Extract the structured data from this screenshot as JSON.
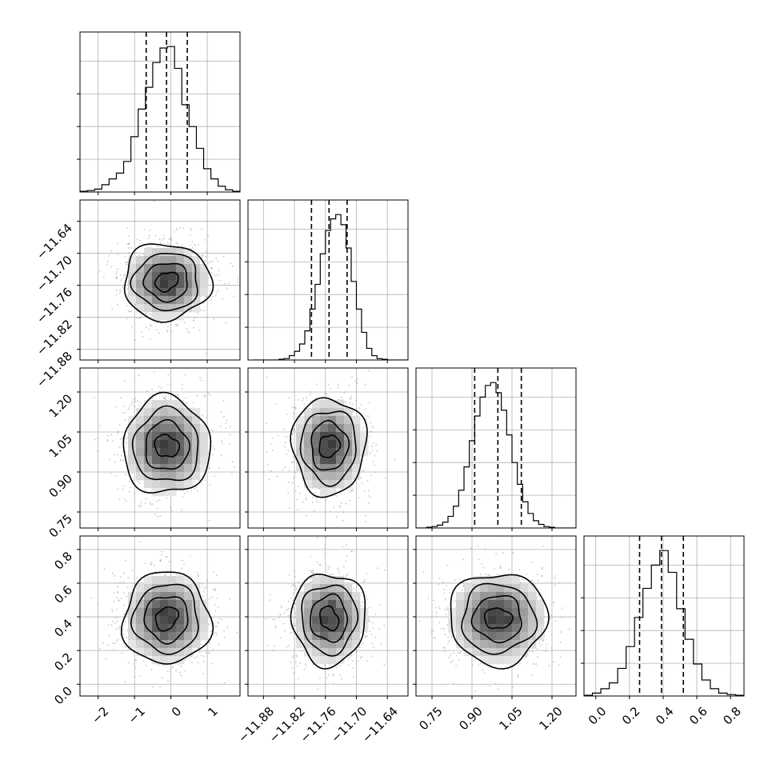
{
  "chart_data": {
    "type": "corner",
    "parameters": [
      {
        "histogram": {
          "bin_edges": [
            -2.5,
            -2.3,
            -2.1,
            -1.9,
            -1.7,
            -1.5,
            -1.3,
            -1.1,
            -0.9,
            -0.7,
            -0.5,
            -0.3,
            -0.1,
            0.1,
            0.3,
            0.5,
            0.7,
            0.9,
            1.1,
            1.3,
            1.5,
            1.7,
            1.9
          ],
          "counts": [
            0.005,
            0.01,
            0.02,
            0.05,
            0.09,
            0.13,
            0.21,
            0.38,
            0.57,
            0.72,
            0.89,
            0.99,
            1.0,
            0.85,
            0.6,
            0.45,
            0.3,
            0.16,
            0.09,
            0.04,
            0.015,
            0.005
          ],
          "ymax": 1.1,
          "quantiles": [
            -0.68,
            -0.12,
            0.45
          ],
          "xlim": [
            -2.5,
            1.9
          ]
        },
        "ticks": [
          -2,
          -1,
          0,
          1
        ],
        "tick_labels": [
          "−2",
          "−1",
          "0",
          "1"
        ],
        "median": -0.12,
        "sigma": 0.57
      },
      {
        "histogram": {
          "bin_edges": [
            -11.9,
            -11.89,
            -11.88,
            -11.87,
            -11.86,
            -11.85,
            -11.84,
            -11.83,
            -11.82,
            -11.81,
            -11.8,
            -11.79,
            -11.78,
            -11.77,
            -11.76,
            -11.75,
            -11.74,
            -11.73,
            -11.72,
            -11.71,
            -11.7,
            -11.69,
            -11.68,
            -11.67,
            -11.66,
            -11.65,
            -11.64,
            -11.63,
            -11.62,
            -11.61,
            -11.6
          ],
          "counts": [
            0,
            0,
            0,
            0,
            0,
            0.005,
            0.01,
            0.03,
            0.06,
            0.11,
            0.2,
            0.35,
            0.52,
            0.73,
            0.89,
            0.97,
            1.0,
            0.93,
            0.77,
            0.54,
            0.35,
            0.19,
            0.08,
            0.03,
            0.01,
            0.005,
            0,
            0,
            0,
            0
          ],
          "ymax": 1.1,
          "quantiles": [
            -11.787,
            -11.753,
            -11.718
          ],
          "xlim": [
            -11.91,
            -11.6
          ]
        },
        "ticks": [
          -11.88,
          -11.82,
          -11.76,
          -11.7,
          -11.64
        ],
        "tick_labels": [
          "−11.88",
          "−11.82",
          "−11.76",
          "−11.70",
          "−11.64"
        ],
        "median": -11.753,
        "sigma": 0.034
      },
      {
        "histogram": {
          "bin_edges": [
            0.69,
            0.71,
            0.73,
            0.75,
            0.77,
            0.79,
            0.81,
            0.83,
            0.85,
            0.87,
            0.89,
            0.91,
            0.93,
            0.95,
            0.97,
            0.99,
            1.01,
            1.03,
            1.05,
            1.07,
            1.09,
            1.11,
            1.13,
            1.15,
            1.17,
            1.19,
            1.21,
            1.23,
            1.25,
            1.27,
            1.29
          ],
          "counts": [
            0,
            0,
            0.005,
            0.01,
            0.02,
            0.04,
            0.08,
            0.15,
            0.26,
            0.42,
            0.6,
            0.77,
            0.9,
            0.98,
            1.0,
            0.93,
            0.81,
            0.64,
            0.45,
            0.3,
            0.18,
            0.1,
            0.05,
            0.025,
            0.01,
            0.005,
            0,
            0,
            0,
            0
          ],
          "ymax": 1.1,
          "quantiles": [
            0.91,
            0.997,
            1.085
          ],
          "xlim": [
            0.69,
            1.29
          ]
        },
        "ticks": [
          0.75,
          0.9,
          1.05,
          1.2
        ],
        "tick_labels": [
          "0.75",
          "0.90",
          "1.05",
          "1.20"
        ],
        "median": 0.997,
        "sigma": 0.087
      },
      {
        "histogram": {
          "bin_edges": [
            -0.07,
            -0.02,
            0.03,
            0.08,
            0.13,
            0.18,
            0.23,
            0.28,
            0.33,
            0.38,
            0.43,
            0.48,
            0.53,
            0.58,
            0.63,
            0.68,
            0.73,
            0.78,
            0.83,
            0.88
          ],
          "counts": [
            0.005,
            0.02,
            0.05,
            0.09,
            0.19,
            0.34,
            0.54,
            0.74,
            0.9,
            1.0,
            0.85,
            0.6,
            0.39,
            0.22,
            0.11,
            0.05,
            0.02,
            0.01,
            0.005
          ],
          "ymax": 1.1,
          "quantiles": [
            0.26,
            0.39,
            0.52
          ],
          "xlim": [
            -0.07,
            0.88
          ]
        },
        "ticks": [
          0,
          0.2,
          0.4,
          0.6,
          0.8
        ],
        "tick_labels": [
          "0.0",
          "0.2",
          "0.4",
          "0.6",
          "0.8"
        ],
        "median": 0.39,
        "sigma": 0.13
      }
    ],
    "y_axis_rows": [
      null,
      {
        "ylim": [
          -11.9,
          -11.6
        ],
        "ticks": [
          -11.88,
          -11.82,
          -11.76,
          -11.7,
          -11.64
        ],
        "tick_labels": [
          "−11.88",
          "−11.82",
          "−11.76",
          "−11.70",
          "−11.64"
        ]
      },
      {
        "ylim": [
          0.69,
          1.29
        ],
        "ticks": [
          0.75,
          0.9,
          1.05,
          1.2
        ],
        "tick_labels": [
          "0.75",
          "0.90",
          "1.05",
          "1.20"
        ]
      },
      {
        "ylim": [
          -0.07,
          0.88
        ],
        "ticks": [
          0,
          0.2,
          0.4,
          0.6,
          0.8
        ],
        "tick_labels": [
          "0.0",
          "0.2",
          "0.4",
          "0.6",
          "0.8"
        ]
      }
    ],
    "contour_levels_sigma": [
      0.5,
      1.0,
      1.5,
      2.0
    ],
    "grid": true,
    "colors": {
      "line": "#000000",
      "grid": "#b0b0b0",
      "scatter": "#9a9a9a",
      "density_max": "#2a2a2a"
    }
  }
}
